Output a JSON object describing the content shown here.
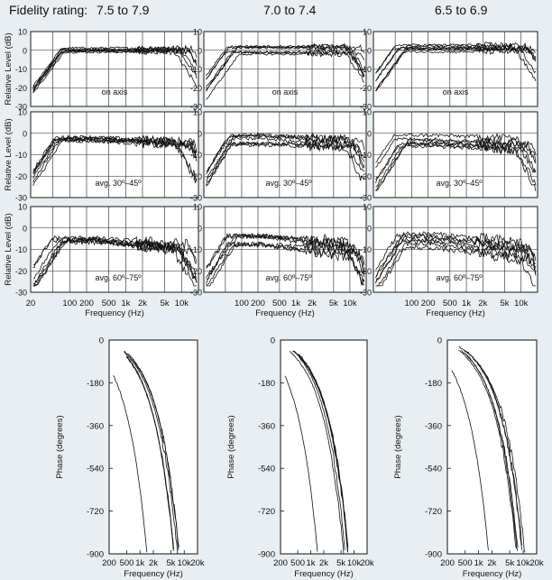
{
  "header": {
    "prefix": "Fidelity rating:",
    "ratings": [
      "7.5 to 7.9",
      "7.0 to 7.4",
      "6.5 to 6.9"
    ]
  },
  "chart_data": [
    {
      "type": "line",
      "group": "magnitude",
      "columns": [
        "7.5 to 7.9",
        "7.0 to 7.4",
        "6.5 to 6.9"
      ],
      "rows": [
        "on axis",
        "avg. 30º–45º",
        "avg. 60º–75º"
      ],
      "ylabel": "Relative Level (dB)",
      "xlabel": "Frequency (Hz)",
      "xscale": "log",
      "xlim": [
        20,
        20000
      ],
      "ylim": [
        -30,
        10
      ],
      "yticks": [
        10,
        0,
        -10,
        -20,
        -30
      ],
      "xtick_labels_col1": [
        "20",
        "100",
        "200",
        "500",
        "1k",
        "2k",
        "5k",
        "10k"
      ],
      "xtick_labels_col2": [
        "100",
        "200",
        "500",
        "1k",
        "2k",
        "5k",
        "10k"
      ],
      "xtick_labels_col3": [
        "100",
        "200",
        "500",
        "1k",
        "2k",
        "5k",
        "10k"
      ],
      "grid": true,
      "series_per_panel": 7,
      "series_nominal_db": {
        "on axis": 0,
        "avg. 30º–45º": -3,
        "avg. 60º–75º": -6
      }
    },
    {
      "type": "line",
      "group": "phase",
      "columns": [
        "7.5 to 7.9",
        "7.0 to 7.4",
        "6.5 to 6.9"
      ],
      "ylabel": "Phase (degrees)",
      "xlabel": "Frequency (Hz)",
      "xscale": "log",
      "xlim": [
        200,
        20000
      ],
      "ylim": [
        -900,
        0
      ],
      "yticks": [
        0,
        -180,
        -360,
        -540,
        -720,
        -900
      ],
      "xtick_labels": [
        "200",
        "500",
        "1k",
        "2k",
        "5k",
        "10k",
        "20k"
      ],
      "grid": false,
      "series_per_panel": 7
    }
  ]
}
